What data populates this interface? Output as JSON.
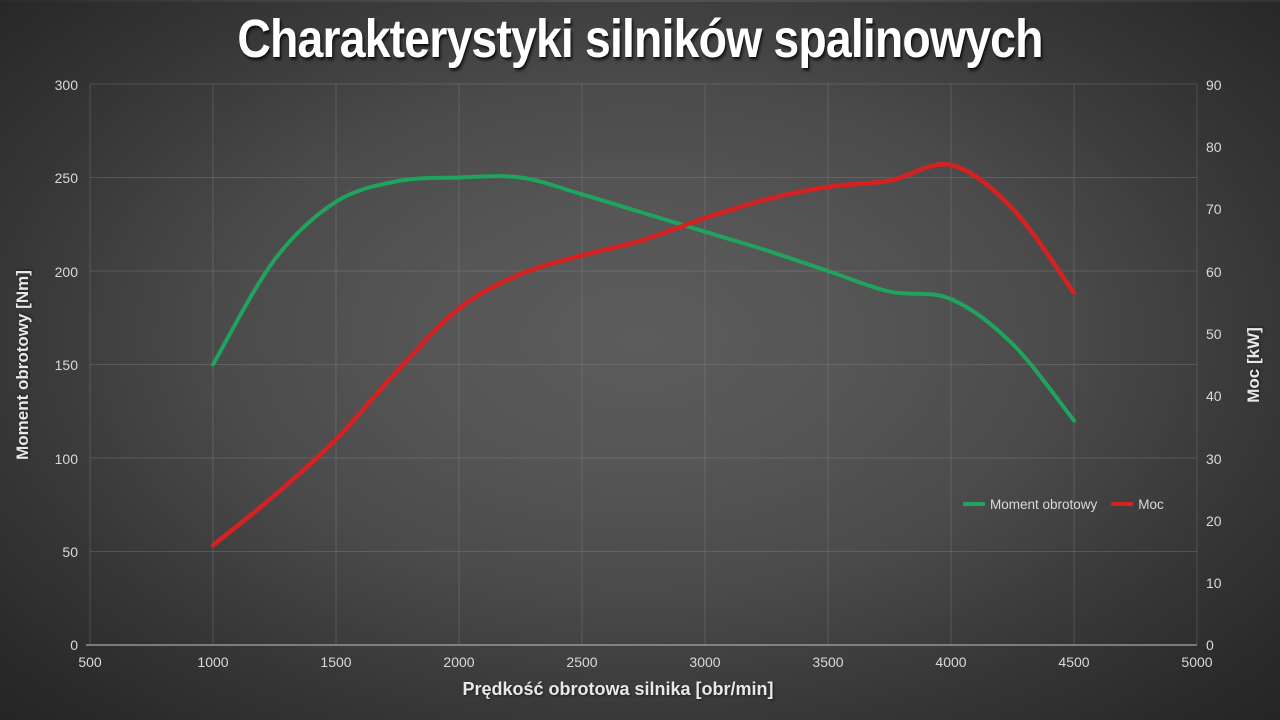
{
  "title": "Charakterystyki silników spalinowych",
  "colors": {
    "background_center": "#5a5a5a",
    "background_edge": "#232323",
    "title_text": "#ffffff",
    "tick_text": "#d9d9d9",
    "gridline": "#9a9a9a",
    "axis_line": "#a6a6a6",
    "torque_green": "#1fa35e",
    "power_red": "#d42222"
  },
  "chart_data": {
    "type": "line",
    "title": "Charakterystyki silników spalinowych",
    "xlabel": "Prędkość obrotowa silnika [obr/min]",
    "ylabel_left": "Moment obrotowy [Nm]",
    "ylabel_right": "Moc [kW]",
    "xlim": [
      500,
      5000
    ],
    "ylim_left": [
      0,
      300
    ],
    "ylim_right": [
      0,
      90
    ],
    "x_ticks": [
      500,
      1000,
      1500,
      2000,
      2500,
      3000,
      3500,
      4000,
      4500,
      5000
    ],
    "y_ticks_left": [
      0,
      50,
      100,
      150,
      200,
      250,
      300
    ],
    "y_ticks_right": [
      0,
      10,
      20,
      30,
      40,
      50,
      60,
      70,
      80,
      90
    ],
    "grid": true,
    "smooth_lines": true,
    "legend_position": "right-center",
    "legend": [
      "Moment obrotowy",
      "Moc"
    ],
    "series": [
      {
        "name": "Moment obrotowy",
        "axis": "left",
        "unit": "Nm",
        "color": "#1fa35e",
        "x": [
          1000,
          1250,
          1500,
          1750,
          2000,
          2250,
          2500,
          2750,
          3000,
          3250,
          3500,
          3750,
          4000,
          4250,
          4500
        ],
        "values": [
          150,
          206,
          237,
          248,
          250,
          250,
          241,
          231,
          221,
          211,
          200,
          189,
          185,
          161,
          120
        ]
      },
      {
        "name": "Moc",
        "axis": "right",
        "unit": "kW",
        "color": "#d42222",
        "x": [
          1000,
          1250,
          1500,
          1750,
          2000,
          2250,
          2500,
          2750,
          3000,
          3250,
          3500,
          3750,
          4000,
          4250,
          4500
        ],
        "values": [
          16,
          24,
          33,
          44,
          54,
          59.5,
          62.5,
          65,
          68.5,
          71.5,
          73.5,
          74.5,
          77,
          70,
          56.5
        ]
      }
    ]
  }
}
